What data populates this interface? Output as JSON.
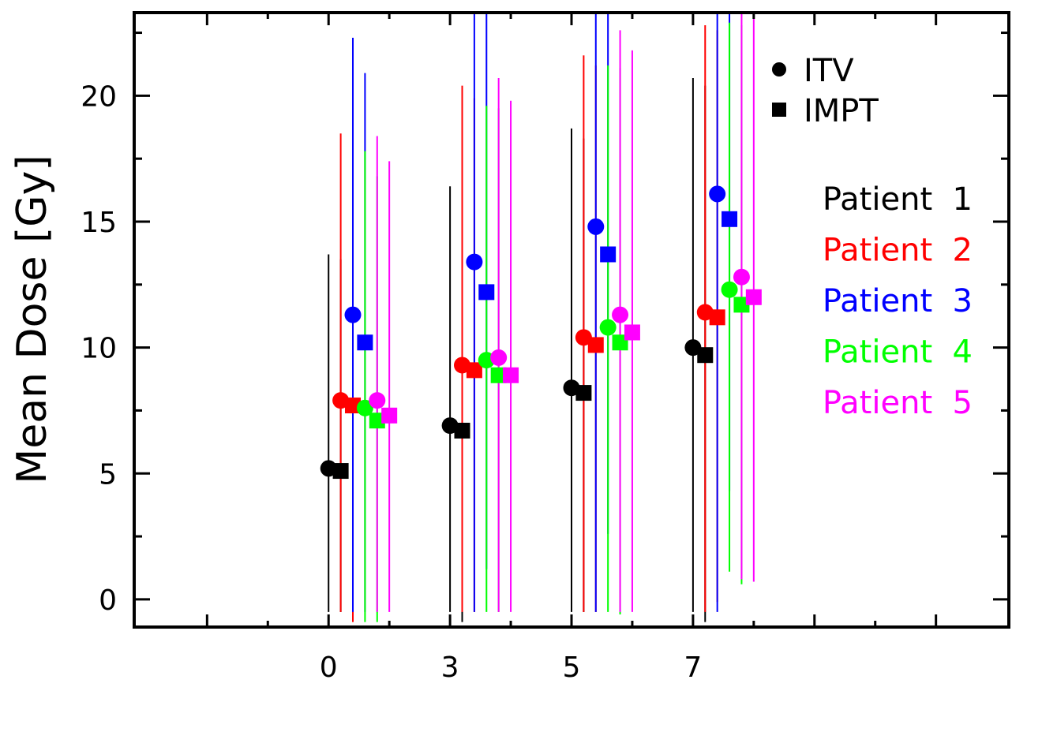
{
  "chart_data": {
    "type": "scatter",
    "ylabel": "Mean Dose [Gy]",
    "xlabel": "",
    "title": "",
    "ylim": [
      -1.1,
      23.3
    ],
    "xlim": [
      -1.6,
      5.6
    ],
    "x_tick_labels": [
      "0",
      "3",
      "5",
      "7"
    ],
    "x_tick_positions": [
      0,
      1,
      2,
      3
    ],
    "y_tick_labels": [
      "0",
      "5",
      "10",
      "15",
      "20"
    ],
    "y_tick_values": [
      0,
      5,
      10,
      15,
      20
    ],
    "legend_position": "top-right",
    "marker_legend": [
      {
        "label": "ITV",
        "marker": "circle"
      },
      {
        "label": "IMPT",
        "marker": "square"
      }
    ],
    "series": [
      {
        "name": "Patient 1",
        "color": "#000000",
        "itv": [
          {
            "x": 0.0,
            "y": 5.2,
            "lo": -0.5,
            "hi": 13.7
          },
          {
            "x": 1.0,
            "y": 6.9,
            "lo": -0.5,
            "hi": 16.4
          },
          {
            "x": 2.0,
            "y": 8.4,
            "lo": -0.5,
            "hi": 18.7
          },
          {
            "x": 3.0,
            "y": 10.0,
            "lo": -0.5,
            "hi": 20.7
          }
        ],
        "impt": [
          {
            "x": 0.1,
            "y": 5.1,
            "lo": -0.5,
            "hi": 13.5
          },
          {
            "x": 1.1,
            "y": 6.7,
            "lo": -0.9,
            "hi": 16.2
          },
          {
            "x": 2.1,
            "y": 8.2,
            "lo": -0.5,
            "hi": 18.3
          },
          {
            "x": 3.1,
            "y": 9.7,
            "lo": -0.9,
            "hi": 20.4
          }
        ]
      },
      {
        "name": "Patient 2",
        "color": "#ff0000",
        "itv": [
          {
            "x": 0.1,
            "y": 7.9,
            "lo": -0.5,
            "hi": 18.5
          },
          {
            "x": 1.1,
            "y": 9.3,
            "lo": -0.5,
            "hi": 20.4
          },
          {
            "x": 2.1,
            "y": 10.4,
            "lo": -0.5,
            "hi": 21.6
          },
          {
            "x": 3.1,
            "y": 11.4,
            "lo": -0.5,
            "hi": 22.8
          }
        ],
        "impt": [
          {
            "x": 0.2,
            "y": 7.7,
            "lo": -0.9,
            "hi": 18.0
          },
          {
            "x": 1.2,
            "y": 9.1,
            "lo": -0.5,
            "hi": 19.9
          },
          {
            "x": 2.2,
            "y": 10.1,
            "lo": -0.5,
            "hi": 21.2
          },
          {
            "x": 3.2,
            "y": 11.2,
            "lo": -0.1,
            "hi": 22.6
          }
        ]
      },
      {
        "name": "Patient 3",
        "color": "#0000ff",
        "itv": [
          {
            "x": 0.2,
            "y": 11.3,
            "lo": -0.5,
            "hi": 22.3
          },
          {
            "x": 1.2,
            "y": 13.4,
            "lo": -0.5,
            "hi": 23.3
          },
          {
            "x": 2.2,
            "y": 14.8,
            "lo": -0.5,
            "hi": 23.3
          },
          {
            "x": 3.2,
            "y": 16.1,
            "lo": -0.5,
            "hi": 23.3
          }
        ],
        "impt": [
          {
            "x": 0.3,
            "y": 10.2,
            "lo": -0.5,
            "hi": 20.9
          },
          {
            "x": 1.3,
            "y": 12.2,
            "lo": 1.2,
            "hi": 23.3
          },
          {
            "x": 2.3,
            "y": 13.7,
            "lo": 2.6,
            "hi": 23.3
          },
          {
            "x": 3.3,
            "y": 15.1,
            "lo": 4.3,
            "hi": 23.3
          }
        ]
      },
      {
        "name": "Patient 4",
        "color": "#00ff00",
        "itv": [
          {
            "x": 0.3,
            "y": 7.6,
            "lo": -0.9,
            "hi": 17.8
          },
          {
            "x": 1.3,
            "y": 9.5,
            "lo": -0.5,
            "hi": 19.6
          },
          {
            "x": 2.3,
            "y": 10.8,
            "lo": -0.5,
            "hi": 21.2
          },
          {
            "x": 3.3,
            "y": 12.3,
            "lo": 1.1,
            "hi": 22.9
          }
        ],
        "impt": [
          {
            "x": 0.4,
            "y": 7.1,
            "lo": -0.9,
            "hi": 16.8
          },
          {
            "x": 1.4,
            "y": 8.9,
            "lo": -0.5,
            "hi": 19.5
          },
          {
            "x": 2.4,
            "y": 10.2,
            "lo": -0.6,
            "hi": 21.1
          },
          {
            "x": 3.4,
            "y": 11.7,
            "lo": 0.6,
            "hi": 22.8
          }
        ]
      },
      {
        "name": "Patient 5",
        "color": "#ff00ff",
        "itv": [
          {
            "x": 0.4,
            "y": 7.9,
            "lo": -0.5,
            "hi": 18.4
          },
          {
            "x": 1.4,
            "y": 9.6,
            "lo": -0.5,
            "hi": 20.7
          },
          {
            "x": 2.4,
            "y": 11.3,
            "lo": -0.5,
            "hi": 22.6
          },
          {
            "x": 3.4,
            "y": 12.8,
            "lo": 0.8,
            "hi": 23.3
          }
        ],
        "impt": [
          {
            "x": 0.5,
            "y": 7.3,
            "lo": -0.5,
            "hi": 17.4
          },
          {
            "x": 1.5,
            "y": 8.9,
            "lo": -0.5,
            "hi": 19.8
          },
          {
            "x": 2.5,
            "y": 10.6,
            "lo": -0.5,
            "hi": 21.8
          },
          {
            "x": 3.5,
            "y": 12.0,
            "lo": 0.7,
            "hi": 23.3
          }
        ]
      }
    ]
  }
}
